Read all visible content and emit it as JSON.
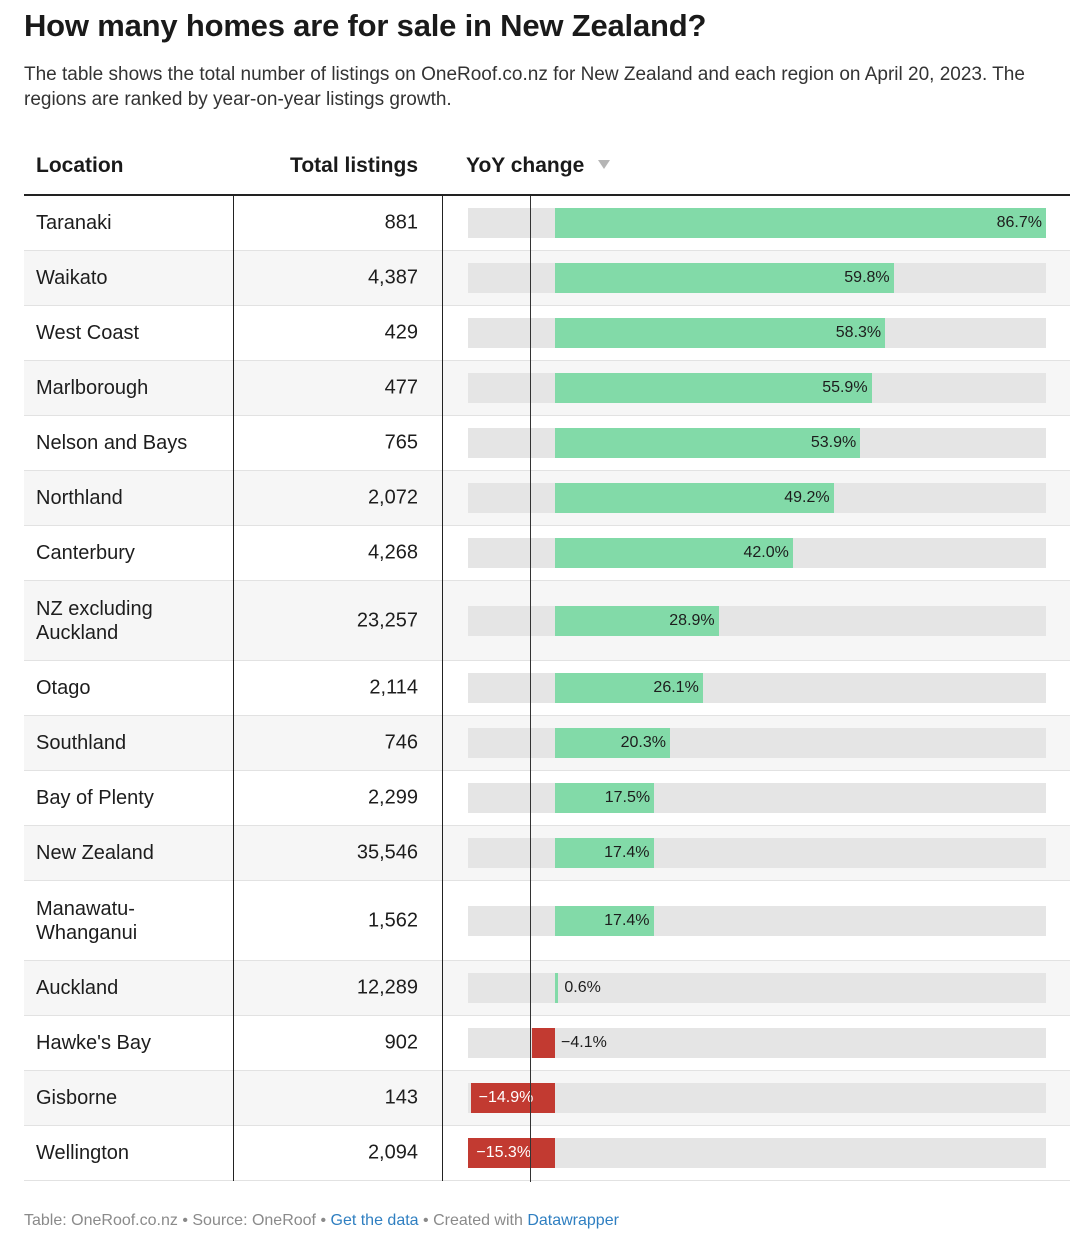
{
  "title": "How many homes are for sale in New Zealand?",
  "description": "The table shows the total number of listings on OneRoof.co.nz for New Zealand and each region on April 20, 2023. The regions are ranked by year-on-year listings growth.",
  "columns": {
    "location": "Location",
    "total": "Total listings",
    "yoy": "YoY change"
  },
  "colors": {
    "positive": "#82daa8",
    "negative": "#c23a31",
    "track": "#e5e5e5"
  },
  "chart_data": {
    "type": "table",
    "columns": [
      "Location",
      "Total listings",
      "YoY change"
    ],
    "rows": [
      {
        "location": "Taranaki",
        "total": "881",
        "yoy": 86.7,
        "yoy_label": "86.7%"
      },
      {
        "location": "Waikato",
        "total": "4,387",
        "yoy": 59.8,
        "yoy_label": "59.8%"
      },
      {
        "location": "West Coast",
        "total": "429",
        "yoy": 58.3,
        "yoy_label": "58.3%"
      },
      {
        "location": "Marlborough",
        "total": "477",
        "yoy": 55.9,
        "yoy_label": "55.9%"
      },
      {
        "location": "Nelson and Bays",
        "total": "765",
        "yoy": 53.9,
        "yoy_label": "53.9%"
      },
      {
        "location": "Northland",
        "total": "2,072",
        "yoy": 49.2,
        "yoy_label": "49.2%"
      },
      {
        "location": "Canterbury",
        "total": "4,268",
        "yoy": 42.0,
        "yoy_label": "42.0%"
      },
      {
        "location": "NZ excluding Auckland",
        "total": "23,257",
        "yoy": 28.9,
        "yoy_label": "28.9%"
      },
      {
        "location": "Otago",
        "total": "2,114",
        "yoy": 26.1,
        "yoy_label": "26.1%"
      },
      {
        "location": "Southland",
        "total": "746",
        "yoy": 20.3,
        "yoy_label": "20.3%"
      },
      {
        "location": "Bay of Plenty",
        "total": "2,299",
        "yoy": 17.5,
        "yoy_label": "17.5%"
      },
      {
        "location": "New Zealand",
        "total": "35,546",
        "yoy": 17.4,
        "yoy_label": "17.4%"
      },
      {
        "location": "Manawatu-Whanganui",
        "total": "1,562",
        "yoy": 17.4,
        "yoy_label": "17.4%"
      },
      {
        "location": "Auckland",
        "total": "12,289",
        "yoy": 0.6,
        "yoy_label": "0.6%"
      },
      {
        "location": "Hawke's Bay",
        "total": "902",
        "yoy": -4.1,
        "yoy_label": "−4.1%"
      },
      {
        "location": "Gisborne",
        "total": "143",
        "yoy": -14.9,
        "yoy_label": "−14.9%"
      },
      {
        "location": "Wellington",
        "total": "2,094",
        "yoy": -15.3,
        "yoy_label": "−15.3%"
      }
    ],
    "yoy_range": [
      -15.3,
      86.7
    ],
    "sort": "YoY change descending"
  },
  "footer": {
    "table_credit": "Table: OneRoof.co.nz",
    "sep1": " • ",
    "source": "Source: OneRoof",
    "sep2": " • ",
    "get_data": "Get the data",
    "sep3": " • ",
    "created_with": "Created with ",
    "tool": "Datawrapper"
  }
}
